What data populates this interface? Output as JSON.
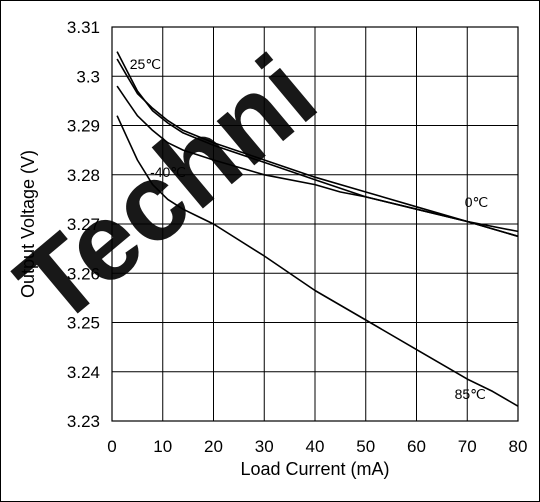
{
  "chart_data": {
    "type": "line",
    "title": "",
    "xlabel": "Load Current (mA)",
    "ylabel": "Output Voltage (V)",
    "xlim": [
      0,
      80
    ],
    "ylim": [
      3.23,
      3.31
    ],
    "xticks": [
      0,
      10,
      20,
      30,
      40,
      50,
      60,
      70,
      80
    ],
    "yticks": [
      3.23,
      3.24,
      3.25,
      3.26,
      3.27,
      3.28,
      3.29,
      3.3,
      3.31
    ],
    "xtick_labels": [
      "0",
      "10",
      "20",
      "30",
      "40",
      "50",
      "60",
      "70",
      "80"
    ],
    "ytick_labels": [
      "3.23",
      "3.24",
      "3.25",
      "3.26",
      "3.27",
      "3.28",
      "3.29",
      "3.3",
      "3.31"
    ],
    "grid": true,
    "legend": "none",
    "series": [
      {
        "name": "25℃",
        "x": [
          1,
          3,
          5,
          8,
          11,
          14,
          20,
          30,
          40,
          50,
          60,
          70,
          80
        ],
        "y": [
          3.305,
          3.301,
          3.297,
          3.293,
          3.2905,
          3.2885,
          3.286,
          3.2825,
          3.279,
          3.2755,
          3.273,
          3.2705,
          3.2685
        ]
      },
      {
        "name": "-40℃",
        "x": [
          1,
          3,
          5,
          8,
          11,
          14,
          20,
          30,
          40,
          45,
          50,
          60,
          70,
          80
        ],
        "y": [
          3.298,
          3.295,
          3.292,
          3.289,
          3.2865,
          3.285,
          3.283,
          3.28,
          3.278,
          3.2765,
          3.2755,
          3.273,
          3.2705,
          3.2675
        ]
      },
      {
        "name": "0℃",
        "x": [
          1,
          3,
          5,
          8,
          11,
          14,
          20,
          30,
          40,
          50,
          60,
          70,
          80
        ],
        "y": [
          3.3035,
          3.3,
          3.2965,
          3.2935,
          3.291,
          3.289,
          3.2865,
          3.283,
          3.2795,
          3.2765,
          3.2735,
          3.2705,
          3.2675
        ]
      },
      {
        "name": "85℃",
        "x": [
          1,
          3,
          5,
          8,
          11,
          14,
          17,
          20,
          30,
          40,
          50,
          60,
          70,
          75,
          80
        ],
        "y": [
          3.292,
          3.2875,
          3.283,
          3.278,
          3.275,
          3.273,
          3.2715,
          3.27,
          3.2635,
          3.2565,
          3.2505,
          3.2445,
          3.2385,
          3.236,
          3.233
        ]
      }
    ],
    "annotations": [
      {
        "text": "25℃",
        "x": 3.5,
        "y": 3.3015
      },
      {
        "text": "-40℃",
        "x": 7.5,
        "y": 3.2795
      },
      {
        "text": "0℃",
        "x": 69.5,
        "y": 3.2735
      },
      {
        "text": "85℃",
        "x": 67.5,
        "y": 3.2345
      }
    ],
    "watermark": "Techni"
  }
}
